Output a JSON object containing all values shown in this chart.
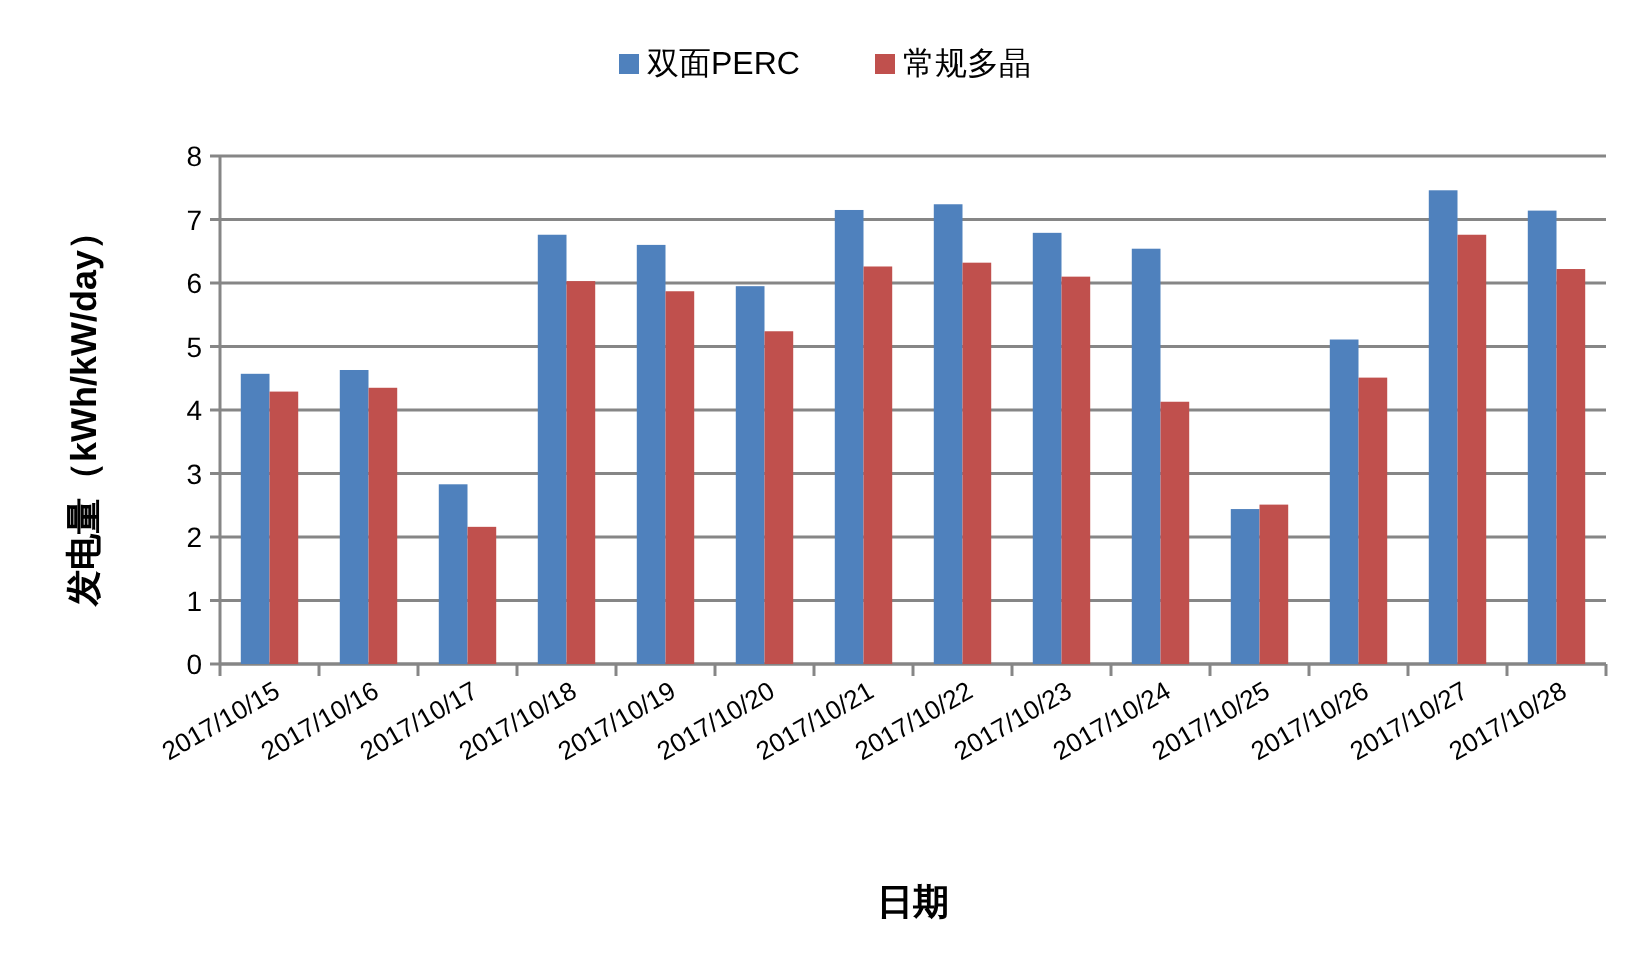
{
  "chart_data": {
    "type": "bar",
    "xlabel": "日期",
    "ylabel": "发电量（kWh/kW/day）",
    "categories": [
      "2017/10/15",
      "2017/10/16",
      "2017/10/17",
      "2017/10/18",
      "2017/10/19",
      "2017/10/20",
      "2017/10/21",
      "2017/10/22",
      "2017/10/23",
      "2017/10/24",
      "2017/10/25",
      "2017/10/26",
      "2017/10/27",
      "2017/10/28"
    ],
    "series": [
      {
        "name": "双面PERC",
        "color": "#4f81bd",
        "values": [
          4.57,
          4.63,
          2.83,
          6.76,
          6.6,
          5.95,
          7.15,
          7.24,
          6.79,
          6.54,
          2.44,
          5.11,
          7.46,
          7.14
        ]
      },
      {
        "name": "常规多晶",
        "color": "#c0504d",
        "values": [
          4.29,
          4.35,
          2.16,
          6.03,
          5.87,
          5.24,
          6.26,
          6.32,
          6.1,
          4.13,
          2.51,
          4.51,
          6.76,
          6.22
        ]
      }
    ],
    "ylim": [
      0,
      8
    ],
    "yticks": [
      0,
      1,
      2,
      3,
      4,
      5,
      6,
      7,
      8
    ],
    "grid": "y",
    "legend": "top"
  }
}
